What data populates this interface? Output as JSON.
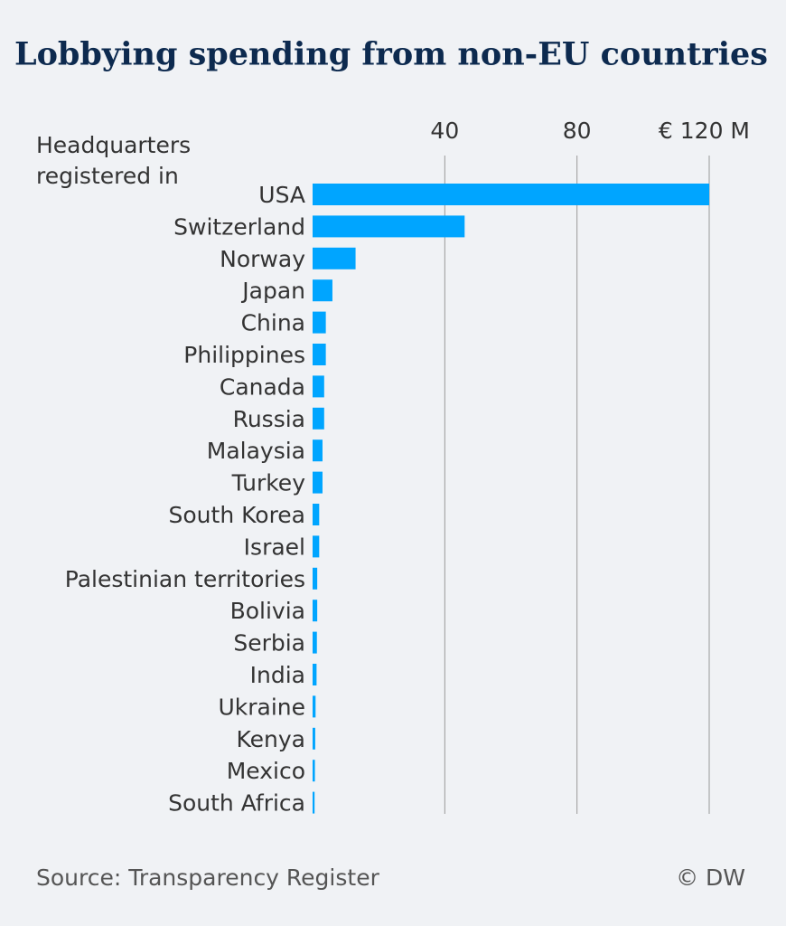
{
  "chart_data": {
    "type": "bar",
    "orientation": "horizontal",
    "title": "Lobbying spending from non-EU countries",
    "y_label": "Headquarters registered in",
    "categories": [
      "USA",
      "Switzerland",
      "Norway",
      "Japan",
      "China",
      "Philippines",
      "Canada",
      "Russia",
      "Malaysia",
      "Turkey",
      "South Korea",
      "Israel",
      "Palestinian territories",
      "Bolivia",
      "Serbia",
      "India",
      "Ukraine",
      "Kenya",
      "Mexico",
      "South Africa"
    ],
    "values": [
      120,
      46,
      13,
      6,
      4,
      4,
      3.5,
      3.5,
      3,
      3,
      2,
      2,
      1.4,
      1.4,
      1.3,
      1.2,
      0.9,
      0.8,
      0.7,
      0.6
    ],
    "color": "#00a5ff",
    "xlim": [
      0,
      120
    ],
    "xticks": [
      40,
      80,
      {
        "value": 120,
        "label": "€ 120 M"
      }
    ],
    "grid": true,
    "source": "Source: Transparency Register",
    "credit": "© DW"
  }
}
